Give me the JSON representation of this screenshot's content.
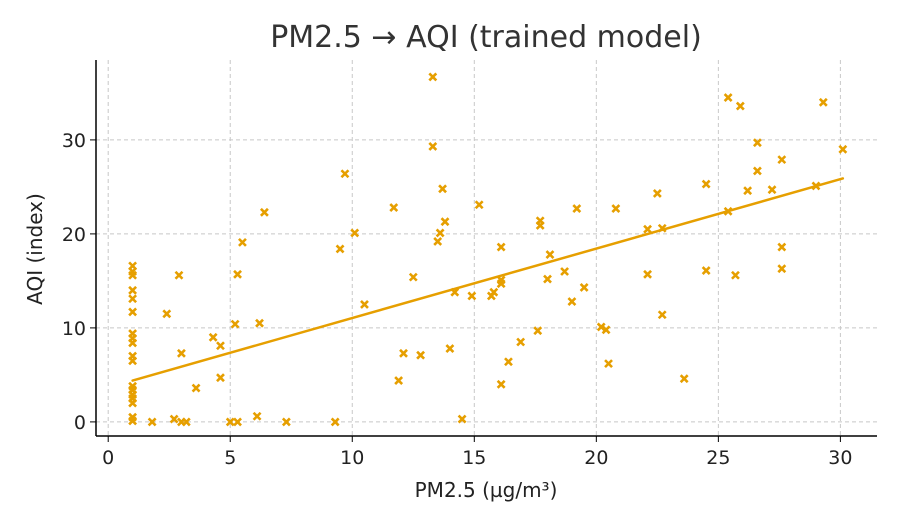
{
  "chart_data": {
    "type": "scatter",
    "title": "PM2.5 → AQI (trained model)",
    "xlabel": "PM2.5 (µg/m³)",
    "ylabel": "AQI (index)",
    "xlim": [
      -0.5,
      31.5
    ],
    "ylim": [
      -1.5,
      38.5
    ],
    "xticks": [
      0,
      5,
      10,
      15,
      20,
      25,
      30
    ],
    "yticks": [
      0,
      10,
      20,
      30
    ],
    "grid": true,
    "legend": "none",
    "marker_color": "#E69F00",
    "line_color": "#E69F00",
    "series": [
      {
        "type": "scatter",
        "marker": "x",
        "points": [
          [
            1.0,
            16.6
          ],
          [
            1.0,
            16.0
          ],
          [
            1.0,
            15.6
          ],
          [
            1.0,
            14.0
          ],
          [
            1.0,
            13.1
          ],
          [
            1.0,
            11.7
          ],
          [
            1.0,
            9.4
          ],
          [
            1.0,
            8.9
          ],
          [
            1.0,
            8.4
          ],
          [
            1.0,
            7.0
          ],
          [
            1.0,
            6.5
          ],
          [
            1.0,
            3.8
          ],
          [
            1.0,
            3.4
          ],
          [
            1.0,
            2.9
          ],
          [
            1.0,
            2.5
          ],
          [
            1.0,
            2.0
          ],
          [
            1.0,
            0.5
          ],
          [
            1.0,
            0.1
          ],
          [
            1.8,
            0.0
          ],
          [
            2.4,
            11.5
          ],
          [
            2.7,
            0.3
          ],
          [
            2.9,
            15.6
          ],
          [
            3.0,
            7.3
          ],
          [
            3.0,
            0.0
          ],
          [
            3.2,
            0.0
          ],
          [
            3.6,
            3.6
          ],
          [
            4.3,
            9.0
          ],
          [
            4.6,
            8.1
          ],
          [
            4.6,
            4.7
          ],
          [
            5.0,
            0.0
          ],
          [
            5.2,
            10.4
          ],
          [
            5.3,
            15.7
          ],
          [
            5.3,
            0.0
          ],
          [
            5.5,
            19.1
          ],
          [
            6.1,
            0.6
          ],
          [
            6.2,
            10.5
          ],
          [
            6.4,
            22.3
          ],
          [
            7.3,
            0.0
          ],
          [
            9.3,
            0.0
          ],
          [
            9.5,
            18.4
          ],
          [
            9.7,
            26.4
          ],
          [
            10.1,
            20.1
          ],
          [
            10.5,
            12.5
          ],
          [
            11.7,
            22.8
          ],
          [
            11.9,
            4.4
          ],
          [
            12.1,
            7.3
          ],
          [
            12.5,
            15.4
          ],
          [
            12.8,
            7.1
          ],
          [
            13.3,
            36.7
          ],
          [
            13.3,
            29.3
          ],
          [
            13.5,
            19.2
          ],
          [
            13.6,
            20.1
          ],
          [
            13.7,
            24.8
          ],
          [
            13.8,
            21.3
          ],
          [
            14.0,
            7.8
          ],
          [
            14.2,
            13.8
          ],
          [
            14.5,
            0.3
          ],
          [
            14.9,
            13.4
          ],
          [
            15.2,
            23.1
          ],
          [
            15.7,
            13.4
          ],
          [
            15.8,
            13.8
          ],
          [
            16.1,
            14.7
          ],
          [
            16.1,
            15.1
          ],
          [
            16.1,
            18.6
          ],
          [
            16.1,
            4.0
          ],
          [
            16.4,
            6.4
          ],
          [
            16.9,
            8.5
          ],
          [
            17.6,
            9.7
          ],
          [
            17.7,
            20.9
          ],
          [
            17.7,
            21.4
          ],
          [
            18.0,
            15.2
          ],
          [
            18.1,
            17.8
          ],
          [
            18.7,
            16.0
          ],
          [
            19.0,
            12.8
          ],
          [
            19.2,
            22.7
          ],
          [
            19.5,
            14.3
          ],
          [
            20.2,
            10.1
          ],
          [
            20.4,
            9.8
          ],
          [
            20.5,
            6.2
          ],
          [
            20.8,
            22.7
          ],
          [
            22.1,
            20.5
          ],
          [
            22.1,
            15.7
          ],
          [
            22.5,
            24.3
          ],
          [
            22.7,
            20.6
          ],
          [
            22.7,
            11.4
          ],
          [
            23.6,
            4.6
          ],
          [
            24.5,
            16.1
          ],
          [
            24.5,
            25.3
          ],
          [
            25.4,
            34.5
          ],
          [
            25.4,
            22.4
          ],
          [
            25.7,
            15.6
          ],
          [
            25.9,
            33.6
          ],
          [
            26.2,
            24.6
          ],
          [
            26.6,
            29.7
          ],
          [
            26.6,
            26.7
          ],
          [
            27.2,
            24.7
          ],
          [
            27.6,
            27.9
          ],
          [
            27.6,
            18.6
          ],
          [
            27.6,
            16.3
          ],
          [
            29.0,
            25.1
          ],
          [
            29.3,
            34.0
          ],
          [
            30.1,
            29.0
          ]
        ]
      },
      {
        "type": "line",
        "points": [
          [
            1.0,
            4.4
          ],
          [
            30.1,
            25.9
          ]
        ]
      }
    ]
  }
}
